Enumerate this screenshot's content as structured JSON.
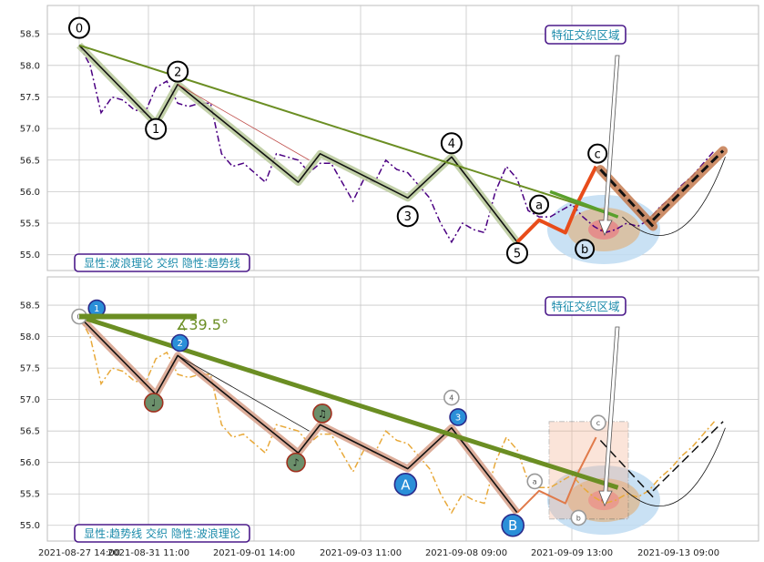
{
  "chart_data": {
    "type": "line",
    "x_ticks": [
      "2021-08-27 14:00",
      "2021-08-31 11:00",
      "2021-09-01 14:00",
      "2021-09-03 11:00",
      "2021-09-08 09:00",
      "2021-09-09 13:00",
      "2021-09-13 09:00"
    ],
    "y_ticks": [
      "55.0",
      "55.5",
      "56.0",
      "56.5",
      "57.0",
      "57.5",
      "58.0",
      "58.5"
    ],
    "ylim": [
      54.75,
      58.95
    ],
    "grid": true,
    "colors": {
      "grid": "#c8c8c8",
      "frame": "#bdbdbd",
      "zone_blue": "#bfdcf2",
      "zone_tan": "#d9bf9f",
      "zone_red": "#e58a8a",
      "trend": "#6b8e23",
      "annotation_frame": "#4b1a8a",
      "annotation_text": "#1a8aaa"
    },
    "price_series": {
      "x": [
        0,
        0.5,
        1,
        1.5,
        2,
        2.5,
        3,
        3.5,
        4,
        4.5,
        5,
        5.5,
        6,
        6.5,
        7,
        7.5,
        8,
        8.5,
        9,
        9.5,
        10,
        10.5,
        11,
        11.5,
        12,
        12.5,
        13,
        13.5,
        14,
        14.5,
        15,
        15.5,
        16,
        16.5,
        17,
        17.5,
        18,
        18.5,
        19,
        19.5,
        20,
        20.5,
        21,
        21.5,
        22,
        22.5,
        23,
        23.5,
        24,
        24.5,
        25,
        25.5,
        26,
        26.5,
        27,
        27.5,
        28,
        28.5,
        29
      ],
      "y": [
        58.32,
        58.0,
        57.25,
        57.5,
        57.45,
        57.3,
        57.25,
        57.65,
        57.75,
        57.4,
        57.35,
        57.4,
        57.4,
        56.6,
        56.4,
        56.45,
        56.3,
        56.15,
        56.6,
        56.55,
        56.5,
        56.3,
        56.45,
        56.45,
        56.15,
        55.85,
        56.2,
        56.15,
        56.5,
        56.35,
        56.3,
        56.1,
        55.9,
        55.5,
        55.2,
        55.5,
        55.4,
        55.35,
        56.0,
        56.4,
        56.2,
        55.7,
        55.6,
        55.6,
        55.7,
        55.8,
        55.6,
        55.45,
        55.35,
        55.4,
        55.5,
        55.45,
        55.55,
        55.75,
        55.9,
        56.1,
        56.25,
        56.45,
        56.65
      ]
    },
    "panels": [
      {
        "label": "显性:波浪理论 交织 隐性:趋势线",
        "zone_label": "特征交织区域",
        "wave_points": [
          {
            "label": "0",
            "x": 0,
            "y": 58.32
          },
          {
            "label": "1",
            "x": 3.5,
            "y": 57.08
          },
          {
            "label": "2",
            "x": 4.5,
            "y": 57.7
          },
          {
            "label": "3",
            "x": 15,
            "y": 55.9
          },
          {
            "label": "4",
            "x": 17,
            "y": 56.55
          },
          {
            "label": "5",
            "x": 20,
            "y": 55.2
          },
          {
            "label": "a",
            "x": 21,
            "y": 55.55
          },
          {
            "label": "b",
            "x": 22.5,
            "y": 55.35
          },
          {
            "label": "c",
            "x": 23.5,
            "y": 56.4
          }
        ]
      },
      {
        "label": "显性:趋势线 交织 隐性:波浪理论",
        "zone_label": "特征交织区域",
        "angle_label": "∡39.5°",
        "wave_points": [
          {
            "label": "0",
            "x": 0,
            "y": 58.32
          },
          {
            "label": "1",
            "x": 0.8,
            "y": 58.45
          },
          {
            "label": "2",
            "x": 4.6,
            "y": 57.9
          },
          {
            "label": "♩",
            "x": 3.4,
            "y": 56.95
          },
          {
            "label": "♪",
            "x": 9.9,
            "y": 56.0
          },
          {
            "label": "♫",
            "x": 11.1,
            "y": 56.78
          },
          {
            "label": "A",
            "x": 14.9,
            "y": 55.65
          },
          {
            "label": "4",
            "x": 17,
            "y": 57.03
          },
          {
            "label": "3",
            "x": 17.3,
            "y": 56.72
          },
          {
            "label": "B",
            "x": 19.8,
            "y": 55.0
          },
          {
            "label": "a",
            "x": 20.8,
            "y": 55.7
          },
          {
            "label": "c",
            "x": 23.7,
            "y": 56.63
          },
          {
            "label": "b",
            "x": 22.8,
            "y": 55.12
          }
        ]
      }
    ]
  }
}
